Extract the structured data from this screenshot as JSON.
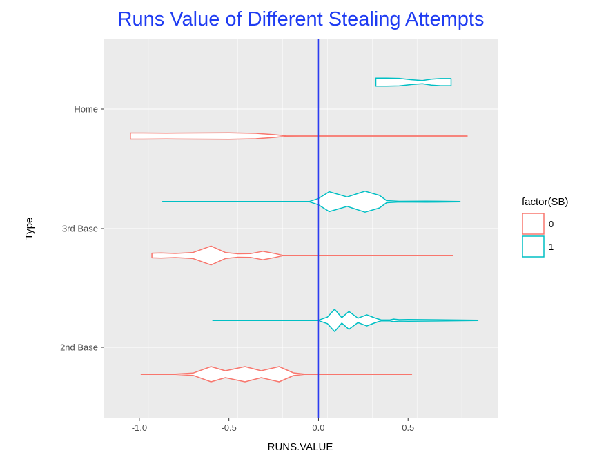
{
  "chart_data": {
    "type": "violin",
    "orientation": "horizontal",
    "title": "Runs Value of Different Stealing Attempts",
    "title_color": "#1f3cf2",
    "xlabel": "RUNS.VALUE",
    "ylabel": "Type",
    "xlim": [
      -1.2,
      1.0
    ],
    "x_ticks": [
      -1.0,
      -0.5,
      0.0,
      0.5
    ],
    "x_tick_labels": [
      "-1.0",
      "-0.5",
      "0.0",
      "0.5"
    ],
    "categories": [
      "Home",
      "3rd Base",
      "2nd Base"
    ],
    "reference_line": {
      "x": 0.0,
      "color": "#2b3cf0"
    },
    "grid": true,
    "panel_background": "#ebebeb",
    "legend": {
      "title": "factor(SB)",
      "position": "right",
      "entries": [
        {
          "label": "0",
          "color": "#f8766d"
        },
        {
          "label": "1",
          "color": "#00bfc4"
        }
      ]
    },
    "series": [
      {
        "name": "0",
        "color": "#f8766d",
        "violins": [
          {
            "category": "Home",
            "min": -1.05,
            "max": 0.83,
            "max_half_width": 0.25,
            "density": [
              [
                -1.05,
                0.95
              ],
              [
                -0.98,
                0.95
              ],
              [
                -0.85,
                0.9
              ],
              [
                -0.7,
                0.95
              ],
              [
                -0.5,
                1.0
              ],
              [
                -0.35,
                0.85
              ],
              [
                -0.25,
                0.45
              ],
              [
                -0.18,
                0.06
              ],
              [
                -0.1,
                0.02
              ],
              [
                0.83,
                0.02
              ]
            ]
          },
          {
            "category": "3rd Base",
            "min": -0.93,
            "max": 0.75,
            "max_half_width": 0.72,
            "density": [
              [
                -0.93,
                0.25
              ],
              [
                -0.88,
                0.27
              ],
              [
                -0.8,
                0.22
              ],
              [
                -0.7,
                0.32
              ],
              [
                -0.6,
                1.0
              ],
              [
                -0.52,
                0.32
              ],
              [
                -0.45,
                0.18
              ],
              [
                -0.38,
                0.2
              ],
              [
                -0.31,
                0.45
              ],
              [
                -0.24,
                0.2
              ],
              [
                -0.2,
                0.02
              ],
              [
                0.75,
                0.02
              ]
            ]
          },
          {
            "category": "2nd Base",
            "min": -0.99,
            "max": 0.52,
            "max_half_width": 0.58,
            "density": [
              [
                -0.99,
                0.02
              ],
              [
                -0.8,
                0.02
              ],
              [
                -0.7,
                0.15
              ],
              [
                -0.6,
                1.0
              ],
              [
                -0.52,
                0.45
              ],
              [
                -0.41,
                1.0
              ],
              [
                -0.32,
                0.45
              ],
              [
                -0.22,
                1.0
              ],
              [
                -0.14,
                0.18
              ],
              [
                -0.08,
                0.02
              ],
              [
                0.52,
                0.02
              ]
            ]
          }
        ]
      },
      {
        "name": "1",
        "color": "#00bfc4",
        "violins": [
          {
            "category": "Home",
            "min": 0.32,
            "max": 0.74,
            "max_half_width": 0.3,
            "density": [
              [
                0.32,
                1.0
              ],
              [
                0.38,
                1.0
              ],
              [
                0.45,
                0.95
              ],
              [
                0.52,
                0.6
              ],
              [
                0.58,
                0.4
              ],
              [
                0.63,
                0.75
              ],
              [
                0.68,
                0.9
              ],
              [
                0.74,
                0.9
              ]
            ]
          },
          {
            "category": "3rd Base",
            "min": -0.87,
            "max": 0.79,
            "max_half_width": 0.8,
            "density": [
              [
                -0.87,
                0.02
              ],
              [
                -0.05,
                0.02
              ],
              [
                0.0,
                0.3
              ],
              [
                0.06,
                0.95
              ],
              [
                0.16,
                0.45
              ],
              [
                0.26,
                1.0
              ],
              [
                0.34,
                0.6
              ],
              [
                0.38,
                0.1
              ],
              [
                0.45,
                0.03
              ],
              [
                0.6,
                0.05
              ],
              [
                0.79,
                0.02
              ]
            ]
          },
          {
            "category": "2nd Base",
            "min": -0.59,
            "max": 0.89,
            "max_half_width": 0.85,
            "density": [
              [
                -0.59,
                0.02
              ],
              [
                0.0,
                0.02
              ],
              [
                0.05,
                0.3
              ],
              [
                0.09,
                1.0
              ],
              [
                0.13,
                0.25
              ],
              [
                0.17,
                0.8
              ],
              [
                0.22,
                0.2
              ],
              [
                0.27,
                0.5
              ],
              [
                0.31,
                0.25
              ],
              [
                0.35,
                0.04
              ],
              [
                0.4,
                0.05
              ],
              [
                0.42,
                0.12
              ],
              [
                0.45,
                0.06
              ],
              [
                0.5,
                0.08
              ],
              [
                0.89,
                0.02
              ]
            ]
          }
        ]
      }
    ]
  }
}
